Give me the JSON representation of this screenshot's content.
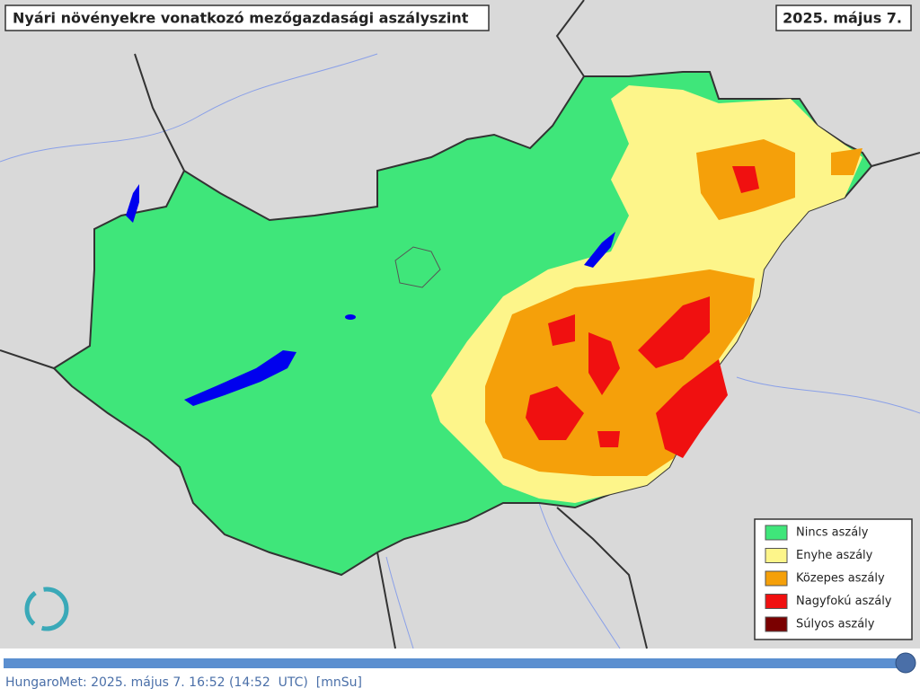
{
  "header": {
    "title": "Nyári növényekre vonatkozó mezőgazdasági aszályszint",
    "date": "2025. május 7."
  },
  "legend": {
    "items": [
      {
        "label": "Nincs aszály",
        "color": "#3fe67a"
      },
      {
        "label": "Enyhe aszály",
        "color": "#fdf58a"
      },
      {
        "label": "Közepes aszály",
        "color": "#f5a00a"
      },
      {
        "label": "Nagyfokú aszály",
        "color": "#f01010"
      },
      {
        "label": "Súlyos aszály",
        "color": "#7a0000"
      }
    ]
  },
  "footer": {
    "source": "HungaroMet",
    "text": ": 2025. május 7. 16:52 (14:52  UTC)  [mnSu]"
  }
}
